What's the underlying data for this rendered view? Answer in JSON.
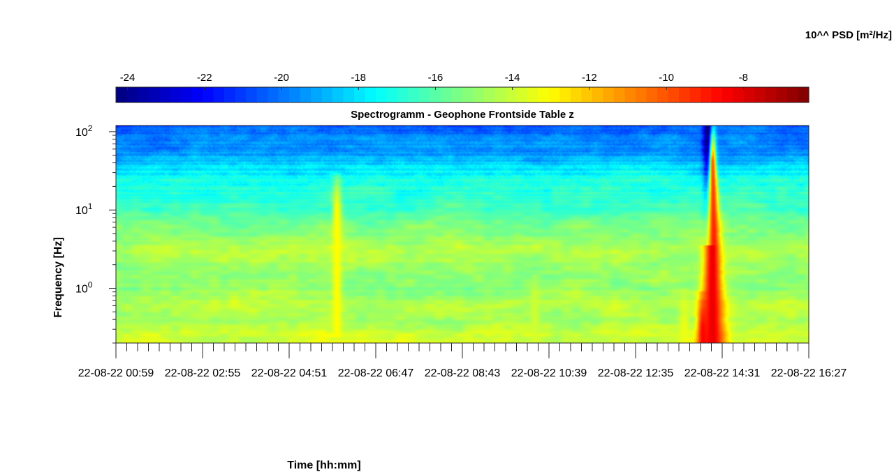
{
  "chart_data": {
    "type": "heatmap",
    "title": "Spectrogramm - Geophone Frontside Table z",
    "xlabel": "Time [hh:mm]",
    "ylabel": "Frequency [Hz]",
    "colorbar_label": "10^^ PSD [m²/Hz]",
    "colormap": "jet",
    "colorbar_ticks": [
      "-24",
      "-22",
      "-20",
      "-18",
      "-16",
      "-14",
      "-12",
      "-10",
      "-8"
    ],
    "colorbar_tick_values": [
      -24,
      -22,
      -20,
      -18,
      -16,
      -14,
      -12,
      -10,
      -8
    ],
    "color_range": [
      -24.3,
      -6.3
    ],
    "y_scale": "log",
    "ylim": [
      0.2,
      120
    ],
    "y_ticks": [
      {
        "value": 100,
        "base": "10",
        "exp": "2"
      },
      {
        "value": 10,
        "base": "10",
        "exp": "1"
      },
      {
        "value": 1,
        "base": "10",
        "exp": "0"
      }
    ],
    "x_tick_labels": [
      "22-08-22 00:59",
      "22-08-22 02:55",
      "22-08-22 04:51",
      "22-08-22 06:47",
      "22-08-22 08:43",
      "22-08-22 10:39",
      "22-08-22 12:35",
      "22-08-22 14:31",
      "22-08-22 16:27"
    ],
    "xlim": [
      "22-08-22 00:59",
      "22-08-22 16:27"
    ],
    "grid": false,
    "psd_profile": {
      "frequency_hz": [
        0.2,
        0.4,
        0.6,
        1.0,
        2.0,
        3.0,
        5.0,
        8.0,
        12.0,
        25.0,
        40.0,
        60.0,
        120.0
      ],
      "log10_psd": [
        -13.6,
        -14.6,
        -14.2,
        -15.0,
        -14.8,
        -14.3,
        -15.3,
        -15.8,
        -16.7,
        -17.3,
        -18.5,
        -19.6,
        -20.3
      ]
    },
    "events": [
      {
        "time": "22-08-22 05:55",
        "f_min_hz": 0.3,
        "f_max_hz": 30,
        "log10_psd_peak": -13.0
      },
      {
        "time": "22-08-22 10:20",
        "f_min_hz": 0.2,
        "f_max_hz": 1.5,
        "log10_psd_peak": -13.9
      },
      {
        "time": "22-08-22 13:40",
        "f_min_hz": 0.2,
        "f_max_hz": 1.0,
        "log10_psd_peak": -13.4
      },
      {
        "time": "22-08-22 14:05",
        "f_min_hz": 0.2,
        "f_max_hz": 0.9,
        "log10_psd_peak": -9.0
      },
      {
        "time": "22-08-22 14:18",
        "f_min_hz": 0.2,
        "f_max_hz": 120,
        "log10_psd_peak": -8.2
      }
    ]
  }
}
